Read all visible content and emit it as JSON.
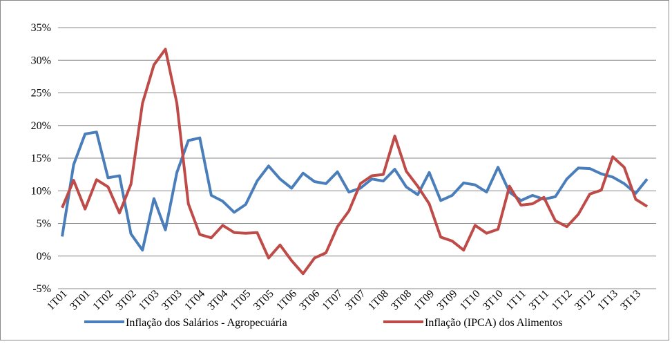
{
  "chart_data": {
    "type": "line",
    "categories": [
      "1T01",
      null,
      "3T01",
      null,
      "1T02",
      null,
      "3T02",
      null,
      "1T03",
      null,
      "3T03",
      null,
      "1T04",
      null,
      "3T04",
      null,
      "1T05",
      null,
      "3T05",
      null,
      "1T06",
      null,
      "3T06",
      null,
      "1T07",
      null,
      "3T07",
      null,
      "1T08",
      null,
      "3T08",
      null,
      "1T09",
      null,
      "3T09",
      null,
      "1T10",
      null,
      "3T10",
      null,
      "1T11",
      null,
      "3T11",
      null,
      "1T12",
      null,
      "3T12",
      null,
      "1T13",
      null,
      "3T13",
      null
    ],
    "series": [
      {
        "name": "Inflação dos Salários - Agropecuária",
        "color": "#4a7ebb",
        "values": [
          3.0,
          14.0,
          18.7,
          19.0,
          12.0,
          12.3,
          3.4,
          0.9,
          8.8,
          4.0,
          12.8,
          17.7,
          18.1,
          9.3,
          8.4,
          6.7,
          7.9,
          11.5,
          13.8,
          11.8,
          10.4,
          12.7,
          11.4,
          11.1,
          12.9,
          9.8,
          10.4,
          11.8,
          11.5,
          13.3,
          10.6,
          9.4,
          12.8,
          8.5,
          9.3,
          11.2,
          10.9,
          9.8,
          13.6,
          9.8,
          8.5,
          9.3,
          8.7,
          9.1,
          11.8,
          13.5,
          13.4,
          12.6,
          12.1,
          11.1,
          9.6,
          11.8
        ]
      },
      {
        "name": "Inflação (IPCA) dos Alimentos",
        "color": "#be4b48",
        "values": [
          7.4,
          11.6,
          7.2,
          11.7,
          10.6,
          6.6,
          11.0,
          23.4,
          29.3,
          31.7,
          23.4,
          8.0,
          3.3,
          2.8,
          4.7,
          3.6,
          3.5,
          3.6,
          -0.3,
          1.7,
          -0.7,
          -2.7,
          -0.3,
          0.5,
          4.5,
          6.9,
          11.1,
          12.3,
          12.5,
          18.4,
          13.0,
          10.7,
          8.0,
          2.9,
          2.3,
          0.9,
          4.7,
          3.5,
          4.1,
          10.7,
          7.8,
          8.0,
          9.0,
          5.4,
          4.5,
          6.4,
          9.5,
          10.1,
          15.2,
          13.6,
          8.7,
          7.6
        ]
      }
    ],
    "ylim": [
      -5,
      35
    ],
    "yticks": [
      {
        "value": -5,
        "label": "-5%"
      },
      {
        "value": 0,
        "label": "0%"
      },
      {
        "value": 5,
        "label": "5%"
      },
      {
        "value": 10,
        "label": "10%"
      },
      {
        "value": 15,
        "label": "15%"
      },
      {
        "value": 20,
        "label": "20%"
      },
      {
        "value": 25,
        "label": "25%"
      },
      {
        "value": 30,
        "label": "30%"
      },
      {
        "value": 35,
        "label": "35%"
      }
    ],
    "grid": true,
    "legend": "bottom"
  }
}
